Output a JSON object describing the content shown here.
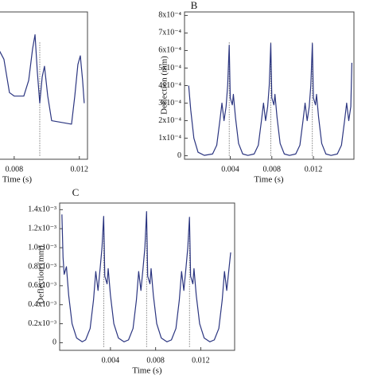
{
  "chart_data": [
    {
      "type": "line",
      "xlabel": "Time (s)",
      "x": [
        0.00703,
        0.00737,
        0.00771,
        0.00801,
        0.00859,
        0.00889,
        0.00913,
        0.00928,
        0.00942,
        0.00957,
        0.00972,
        0.00986,
        0.01006,
        0.0103,
        0.01152,
        0.01172,
        0.01191,
        0.01206,
        0.0122,
        0.0123
      ],
      "values": [
        0.00061,
        0.00055,
        0.00036,
        0.00034,
        0.00034,
        0.00043,
        0.00061,
        0.00069,
        0.00048,
        0.0003,
        0.00045,
        0.00051,
        0.00034,
        0.0002,
        0.00018,
        0.00034,
        0.00052,
        0.00057,
        0.00043,
        0.0003
      ],
      "color": "#2b3580",
      "xlim": [
        0,
        0.0125
      ],
      "ylim": [
        -2e-05,
        0.00082
      ],
      "xticks": [
        0.008,
        0.012
      ],
      "vlines": [
        0.00957
      ]
    },
    {
      "type": "line",
      "panel_label": "B",
      "xlabel": "Time (s)",
      "ylabel": "Deflection (mm)",
      "x": [
        0,
        0.0002,
        0.0005,
        0.0009,
        0.0015,
        0.0023,
        0.0027,
        0.003,
        0.0032,
        0.0034,
        0.0036,
        0.00375,
        0.0039,
        0.004,
        0.0042,
        0.0043,
        0.0045,
        0.0048,
        0.0052,
        0.0057,
        0.0063,
        0.0067,
        0.007,
        0.0072,
        0.0074,
        0.0076,
        0.00775,
        0.0079,
        0.008,
        0.0082,
        0.0083,
        0.0085,
        0.0088,
        0.0092,
        0.0097,
        0.0103,
        0.0107,
        0.011,
        0.0112,
        0.0114,
        0.0116,
        0.01175,
        0.0119,
        0.012,
        0.0122,
        0.0123,
        0.0125,
        0.0128,
        0.0132,
        0.0137,
        0.0143,
        0.0147,
        0.015,
        0.0152,
        0.0154,
        0.0156,
        0.0157
      ],
      "values": [
        0.0004,
        0.00026,
        0.0001,
        2e-05,
        2e-06,
        1e-05,
        6e-05,
        0.0002,
        0.0003,
        0.0002,
        0.00028,
        0.0004,
        0.00063,
        0.00033,
        0.00029,
        0.00035,
        0.00022,
        7e-05,
        1e-05,
        2e-06,
        1e-05,
        6e-05,
        0.0002,
        0.0003,
        0.0002,
        0.00028,
        0.0004,
        0.00064,
        0.00033,
        0.00029,
        0.00035,
        0.00022,
        7e-05,
        1e-05,
        2e-06,
        1e-05,
        6e-05,
        0.0002,
        0.0003,
        0.0002,
        0.00028,
        0.0004,
        0.00064,
        0.00033,
        0.00029,
        0.00035,
        0.00022,
        7e-05,
        1e-05,
        2e-06,
        1e-05,
        6e-05,
        0.0002,
        0.0003,
        0.0002,
        0.00028,
        0.00053
      ],
      "color": "#2b3580",
      "xlim": [
        -0.0004,
        0.0159
      ],
      "ylim": [
        -2e-05,
        0.00082
      ],
      "xticks": [
        0.004,
        0.008,
        0.012
      ],
      "yticks": [
        0,
        {
          "value": 0.0001,
          "label": "1x10⁻⁴"
        },
        {
          "value": 0.0002,
          "label": "2x10⁻⁴"
        },
        {
          "value": 0.0003,
          "label": "3x10⁻⁴"
        },
        {
          "value": 0.0004,
          "label": "4x10⁻⁴"
        },
        {
          "value": 0.0005,
          "label": "5x10⁻⁴"
        },
        {
          "value": 0.0006,
          "label": "6x10⁻⁴"
        },
        {
          "value": 0.0007,
          "label": "7x10⁻⁴"
        },
        {
          "value": 0.0008,
          "label": "8x10⁻⁴"
        }
      ],
      "vlines": [
        0.0039,
        0.0079,
        0.0119
      ]
    },
    {
      "type": "line",
      "panel_label": "C",
      "xlabel": "Time (s)",
      "ylabel": "Deflection (mm)",
      "x": [
        -0.0003,
        -0.0002,
        -0.0001,
        0.0001,
        0.0003,
        0.0006,
        0.001,
        0.0015,
        0.0018,
        0.0022,
        0.0025,
        0.0027,
        0.0029,
        0.0031,
        0.00325,
        0.0034,
        0.0035,
        0.0037,
        0.0038,
        0.004,
        0.0043,
        0.0047,
        0.0052,
        0.0056,
        0.006,
        0.0063,
        0.0065,
        0.0067,
        0.0069,
        0.00705,
        0.0072,
        0.0073,
        0.0075,
        0.0076,
        0.0078,
        0.0081,
        0.0085,
        0.009,
        0.0094,
        0.0098,
        0.0101,
        0.0103,
        0.0105,
        0.0107,
        0.01085,
        0.011,
        0.0111,
        0.0113,
        0.0114,
        0.0116,
        0.0119,
        0.0123,
        0.0128,
        0.0132,
        0.0136,
        0.0139,
        0.0141,
        0.0143,
        0.01465
      ],
      "values": [
        0.00135,
        0.0009,
        0.00072,
        0.0008,
        0.0005,
        0.0002,
        5e-05,
        1e-05,
        3e-05,
        0.00015,
        0.00045,
        0.00075,
        0.00055,
        0.0008,
        0.001,
        0.00133,
        0.0007,
        0.00062,
        0.00078,
        0.0005,
        0.0002,
        5e-05,
        1e-05,
        3e-05,
        0.00015,
        0.00045,
        0.00075,
        0.00055,
        0.0008,
        0.001,
        0.00138,
        0.0007,
        0.00062,
        0.00078,
        0.0005,
        0.0002,
        5e-05,
        1e-05,
        3e-05,
        0.00015,
        0.00045,
        0.00075,
        0.00055,
        0.0008,
        0.001,
        0.00132,
        0.0007,
        0.00062,
        0.00078,
        0.0005,
        0.0002,
        5e-05,
        1e-05,
        3e-05,
        0.00015,
        0.00045,
        0.00075,
        0.00055,
        0.00095
      ],
      "color": "#2b3580",
      "xlim": [
        -0.0005,
        0.015
      ],
      "ylim": [
        -8e-05,
        0.00147
      ],
      "xticks": [
        0.004,
        0.008,
        0.012
      ],
      "yticks": [
        0,
        {
          "value": 0.0002,
          "label": "0.2x10⁻³"
        },
        {
          "value": 0.0004,
          "label": "0.4x10⁻³"
        },
        {
          "value": 0.0006,
          "label": "0.6x10⁻³"
        },
        {
          "value": 0.0008,
          "label": "0.8x10⁻³"
        },
        {
          "value": 0.001,
          "label": "1.0x10⁻³"
        },
        {
          "value": 0.0012,
          "label": "1.2x10⁻³"
        },
        {
          "value": 0.0014,
          "label": "1.4x10⁻³"
        }
      ],
      "vlines": [
        0.0034,
        0.0072,
        0.011
      ]
    }
  ]
}
